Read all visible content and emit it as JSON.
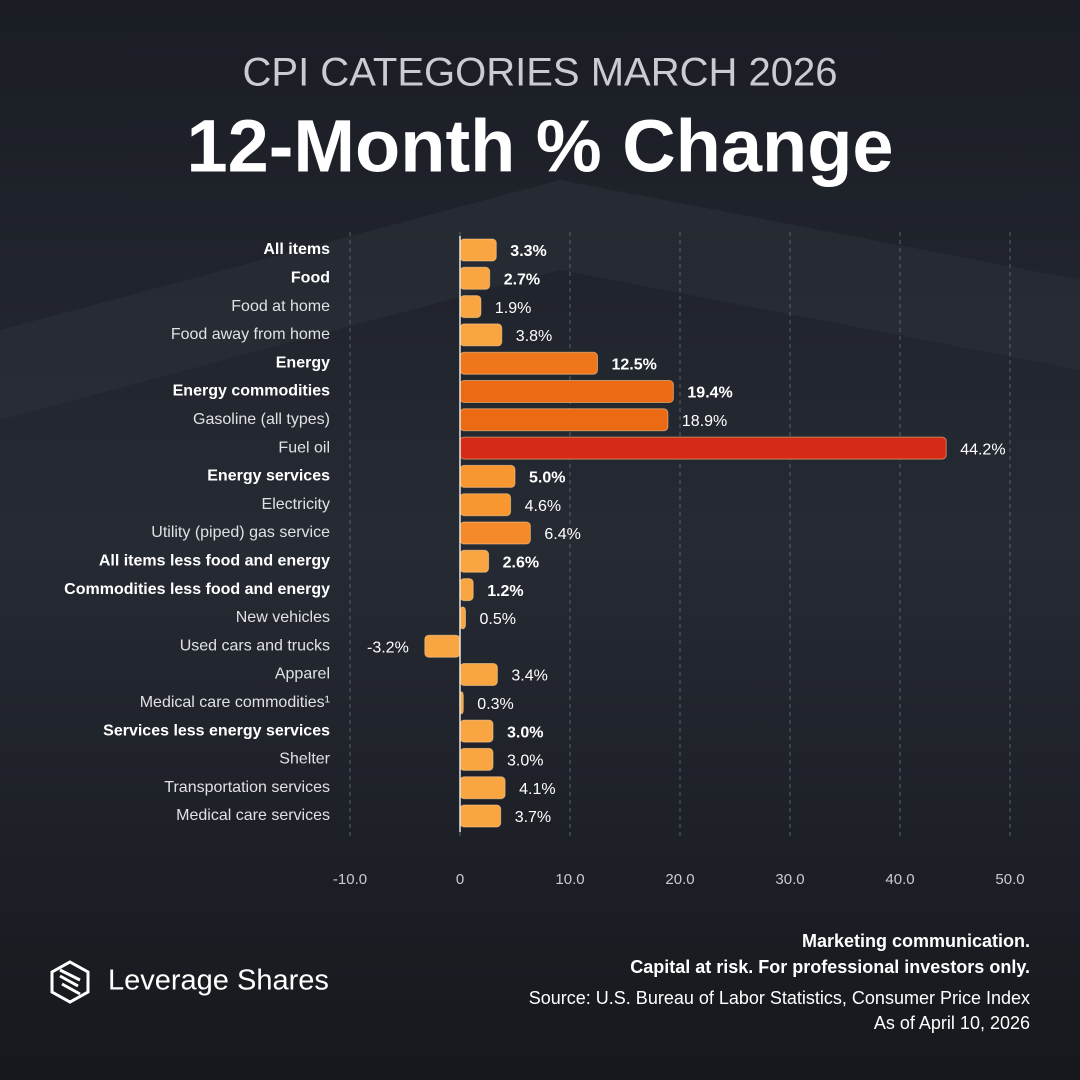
{
  "chart_data": {
    "type": "bar",
    "orientation": "horizontal",
    "subtitle": "CPI CATEGORIES MARCH 2026",
    "title": "12-Month % Change",
    "categories": [
      "All items",
      "Food",
      "Food at home",
      "Food away from home",
      "Energy",
      "Energy commodities",
      "Gasoline (all types)",
      "Fuel oil",
      "Energy services",
      "Electricity",
      "Utility (piped) gas service",
      "All items less food and energy",
      "Commodities less food and energy",
      "New vehicles",
      "Used cars and trucks",
      "Apparel",
      "Medical care commodities¹",
      "Services less energy services",
      "Shelter",
      "Transportation services",
      "Medical care services"
    ],
    "bold": [
      true,
      true,
      false,
      false,
      true,
      true,
      false,
      false,
      true,
      false,
      false,
      true,
      true,
      false,
      false,
      false,
      false,
      true,
      false,
      false,
      false
    ],
    "values": [
      3.3,
      2.7,
      1.9,
      3.8,
      12.5,
      19.4,
      18.9,
      44.2,
      5.0,
      4.6,
      6.4,
      2.6,
      1.2,
      0.5,
      -3.2,
      3.4,
      0.3,
      3.0,
      3.0,
      4.1,
      3.7
    ],
    "value_labels": [
      "3.3%",
      "2.7%",
      "1.9%",
      "3.8%",
      "12.5%",
      "19.4%",
      "18.9%",
      "44.2%",
      "5.0%",
      "4.6%",
      "6.4%",
      "2.6%",
      "1.2%",
      "0.5%",
      "-3.2%",
      "3.4%",
      "0.3%",
      "3.0%",
      "3.0%",
      "4.1%",
      "3.7%"
    ],
    "colors": [
      "#f9a542",
      "#f9a542",
      "#f9a542",
      "#f9a542",
      "#f0761c",
      "#ec6a14",
      "#ec6a14",
      "#d42a16",
      "#f8962f",
      "#f8962f",
      "#f58a2a",
      "#f9a542",
      "#f9a542",
      "#f9a542",
      "#f9a542",
      "#f9a542",
      "#f9a542",
      "#f9a542",
      "#f9a542",
      "#f9a542",
      "#f9a542"
    ],
    "xlim": [
      -10,
      50
    ],
    "xticks": [
      {
        "value": -10,
        "label": "-10.0"
      },
      0,
      {
        "value": 10,
        "label": "10.0"
      },
      {
        "value": 20,
        "label": "20.0"
      },
      {
        "value": 30,
        "label": "30.0"
      },
      {
        "value": 40,
        "label": "40.0"
      },
      {
        "value": 50,
        "label": "50.0"
      }
    ],
    "grid": true,
    "brand": "Leverage Shares",
    "disclaimer": [
      "Marketing communication.",
      "Capital at risk. For professional investors only."
    ],
    "source": "Source: U.S. Bureau of Labor Statistics, Consumer Price Index",
    "date": "As of April 10, 2026"
  }
}
